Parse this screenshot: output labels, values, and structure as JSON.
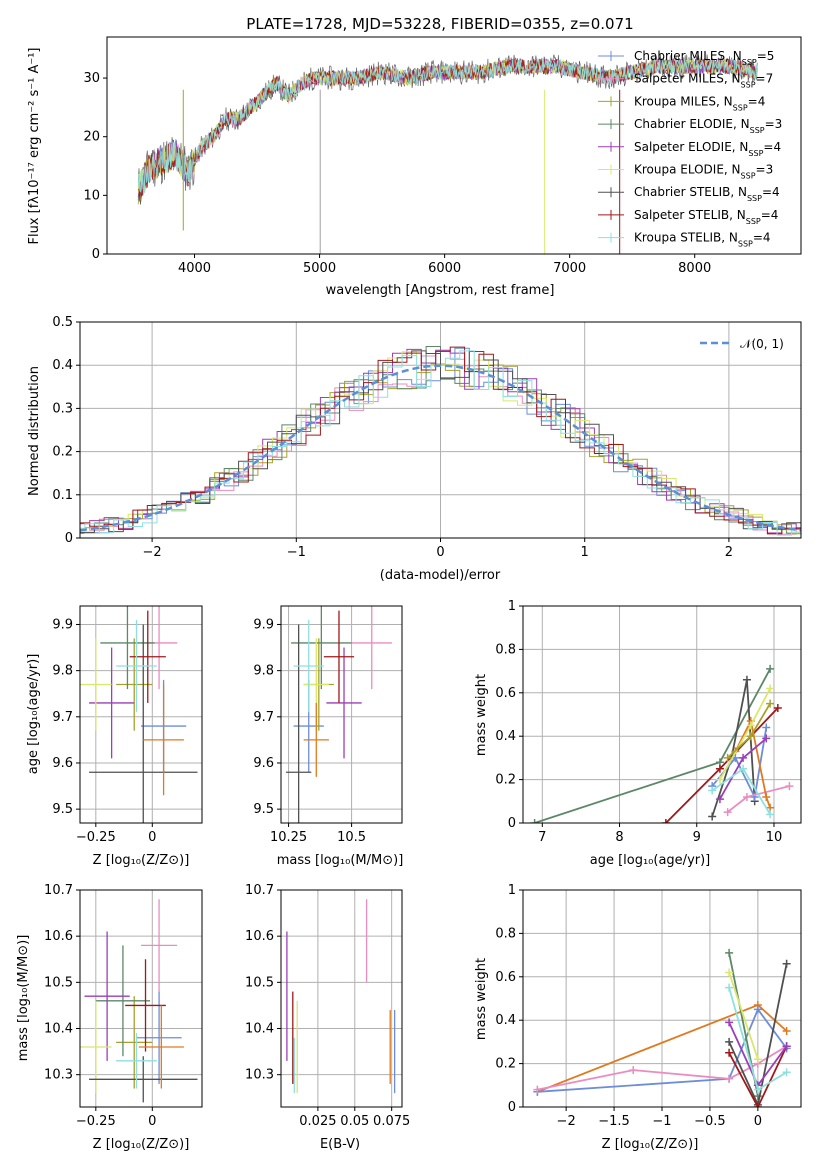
{
  "title": "PLATE=1728, MJD=53228, FIBERID=0355, z=0.071",
  "legend_spectrum": [
    {
      "name": "Chabrier MILES",
      "nssp": "5",
      "color": "#6c8ddc"
    },
    {
      "name": "Salpeter MILES",
      "nssp": "7",
      "color": "#ea8cc0"
    },
    {
      "name": "Kroupa MILES",
      "nssp": "4",
      "color": "#a8a02c"
    },
    {
      "name": "Chabrier ELODIE",
      "nssp": "3",
      "color": "#5c8868"
    },
    {
      "name": "Salpeter ELODIE",
      "nssp": "4",
      "color": "#9b3fb8"
    },
    {
      "name": "Kroupa ELODIE",
      "nssp": "3",
      "color": "#d8e86c"
    },
    {
      "name": "Chabrier STELIB",
      "nssp": "4",
      "color": "#505050"
    },
    {
      "name": "Salpeter STELIB",
      "nssp": "4",
      "color": "#a01818"
    },
    {
      "name": "Kroupa STELIB",
      "nssp": "4",
      "color": "#8ee0e0"
    }
  ],
  "labels": {
    "flux": "Flux [fλ10⁻¹⁷ erg cm⁻² s⁻¹ A⁻¹]",
    "wavelength": "wavelength [Angstrom, rest frame]",
    "normed": "Normed distribution",
    "residual": "(data-model)/error",
    "normal_legend": "𝒩(0, 1)",
    "age_axis": "age  [log₁₀(age/yr)]",
    "age_axis_x": "age  [log₁₀(age/yr)]",
    "Z_axis": "Z [log₁₀(Z/Z⊙)]",
    "mass_axis": "mass [log₁₀(M/M⊙)]",
    "ebv_axis": "E(B-V)",
    "mass_weight": "mass weight"
  },
  "chart_data": [
    {
      "type": "line",
      "title": "PLATE=1728, MJD=53228, FIBERID=0355, z=0.071",
      "xlabel": "wavelength [Angstrom, rest frame]",
      "ylabel": "Flux [fλ10⁻¹⁷ erg cm⁻² s⁻¹ A⁻¹]",
      "xlim": [
        3300,
        8850
      ],
      "ylim": [
        0,
        37
      ],
      "xticks": [
        4000,
        5000,
        6000,
        7000,
        8000
      ],
      "yticks": [
        0,
        10,
        20,
        30
      ],
      "x": [
        3550,
        3650,
        3750,
        3850,
        3950,
        4050,
        4150,
        4250,
        4350,
        4450,
        4550,
        4650,
        4750,
        4850,
        4950,
        5050,
        5150,
        5300,
        5500,
        5700,
        5900,
        6100,
        6300,
        6500,
        6700,
        6900,
        7100,
        7300,
        7500,
        7700,
        7900,
        8100,
        8300,
        8500
      ],
      "y": [
        11,
        15,
        16,
        17,
        14,
        18,
        20,
        23,
        23,
        25,
        27,
        29,
        27,
        29,
        30,
        30,
        30,
        30,
        31,
        30,
        31,
        31,
        31,
        32,
        32,
        32,
        31,
        30,
        31,
        32,
        32,
        32,
        32,
        31
      ],
      "grid": false
    },
    {
      "type": "histogram",
      "xlabel": "(data-model)/error",
      "ylabel": "Normed distribution",
      "xlim": [
        -2.5,
        2.5
      ],
      "ylim": [
        0,
        0.5
      ],
      "xticks": [
        -2,
        -1,
        0,
        1,
        2
      ],
      "yticks": [
        0.0,
        0.1,
        0.2,
        0.3,
        0.4,
        0.5
      ],
      "overlay": "N(0,1) gaussian, dashed",
      "legend": "top-right",
      "grid": true
    },
    {
      "type": "scatter",
      "xlabel": "Z [log₁₀(Z/Z⊙)]",
      "ylabel": "age  [log₁₀(age/yr)]",
      "xlim": [
        -0.32,
        0.22
      ],
      "ylim": [
        9.47,
        9.94
      ],
      "xticks": [
        -0.25,
        0.0
      ],
      "yticks": [
        9.5,
        9.6,
        9.7,
        9.8,
        9.9
      ],
      "points": [
        {
          "x": 0.05,
          "y": 9.68,
          "xerr": 0.1,
          "yerr": 0.1,
          "color": "#6c8ddc"
        },
        {
          "x": 0.03,
          "y": 9.86,
          "xerr": 0.08,
          "yerr": 0.1,
          "color": "#ea8cc0"
        },
        {
          "x": -0.08,
          "y": 9.77,
          "xerr": 0.08,
          "yerr": 0.1,
          "color": "#a8a02c"
        },
        {
          "x": -0.11,
          "y": 9.86,
          "xerr": 0.12,
          "yerr": 0.1,
          "color": "#5c8868"
        },
        {
          "x": -0.18,
          "y": 9.73,
          "xerr": 0.1,
          "yerr": 0.12,
          "color": "#9b3fb8"
        },
        {
          "x": -0.25,
          "y": 9.77,
          "xerr": 0.07,
          "yerr": 0.1,
          "color": "#d8e86c"
        },
        {
          "x": -0.04,
          "y": 9.58,
          "xerr": 0.24,
          "yerr": 0.32,
          "color": "#505050"
        },
        {
          "x": -0.02,
          "y": 9.83,
          "xerr": 0.08,
          "yerr": 0.1,
          "color": "#a01818"
        },
        {
          "x": -0.07,
          "y": 9.81,
          "xerr": 0.09,
          "yerr": 0.1,
          "color": "#8ee0e0"
        },
        {
          "x": 0.05,
          "y": 9.65,
          "xerr": 0.09,
          "yerr": 0.12,
          "color": "#e07a20"
        }
      ]
    },
    {
      "type": "scatter",
      "xlabel": "mass [log₁₀(M/M⊙)]",
      "ylabel": "",
      "xlim": [
        10.22,
        10.7
      ],
      "ylim": [
        9.47,
        9.94
      ],
      "xticks": [
        10.25,
        10.5
      ],
      "yticks": [
        9.5,
        9.6,
        9.7,
        9.8,
        9.9
      ],
      "points": [
        {
          "x": 10.33,
          "y": 9.68,
          "xerr": 0.06,
          "yerr": 0.1,
          "color": "#6c8ddc"
        },
        {
          "x": 10.58,
          "y": 9.86,
          "xerr": 0.08,
          "yerr": 0.1,
          "color": "#ea8cc0"
        },
        {
          "x": 10.37,
          "y": 9.77,
          "xerr": 0.06,
          "yerr": 0.1,
          "color": "#a8a02c"
        },
        {
          "x": 10.38,
          "y": 9.86,
          "xerr": 0.12,
          "yerr": 0.1,
          "color": "#5c8868"
        },
        {
          "x": 10.47,
          "y": 9.73,
          "xerr": 0.07,
          "yerr": 0.12,
          "color": "#9b3fb8"
        },
        {
          "x": 10.36,
          "y": 9.77,
          "xerr": 0.05,
          "yerr": 0.1,
          "color": "#d8e86c"
        },
        {
          "x": 10.29,
          "y": 9.58,
          "xerr": 0.05,
          "yerr": 0.32,
          "color": "#505050"
        },
        {
          "x": 10.45,
          "y": 9.83,
          "xerr": 0.06,
          "yerr": 0.1,
          "color": "#a01818"
        },
        {
          "x": 10.33,
          "y": 9.81,
          "xerr": 0.06,
          "yerr": 0.1,
          "color": "#8ee0e0"
        },
        {
          "x": 10.36,
          "y": 9.65,
          "xerr": 0.05,
          "yerr": 0.08,
          "color": "#e07a20"
        }
      ]
    },
    {
      "type": "line",
      "xlabel": "age  [log₁₀(age/yr)]",
      "ylabel": "mass weight",
      "xlim": [
        6.75,
        10.35
      ],
      "ylim": [
        0,
        1
      ],
      "xticks": [
        7,
        8,
        9,
        10
      ],
      "yticks": [
        0.0,
        0.2,
        0.4,
        0.6,
        0.8,
        1.0
      ],
      "series": [
        {
          "color": "#5c8868",
          "x": [
            6.9,
            9.3,
            9.95
          ],
          "y": [
            0.0,
            0.28,
            0.71
          ]
        },
        {
          "color": "#a01818",
          "x": [
            8.6,
            9.3,
            10.05
          ],
          "y": [
            0.0,
            0.25,
            0.53
          ]
        },
        {
          "color": "#505050",
          "x": [
            9.2,
            9.45,
            9.65,
            9.75
          ],
          "y": [
            0.03,
            0.3,
            0.66,
            0.1
          ]
        },
        {
          "color": "#6c8ddc",
          "x": [
            9.2,
            9.5,
            9.75,
            9.9
          ],
          "y": [
            0.17,
            0.3,
            0.12,
            0.44
          ]
        },
        {
          "color": "#ea8cc0",
          "x": [
            9.4,
            9.65,
            10.2
          ],
          "y": [
            0.05,
            0.12,
            0.17
          ]
        },
        {
          "color": "#e07a20",
          "x": [
            9.5,
            9.7,
            9.9,
            9.95
          ],
          "y": [
            0.33,
            0.47,
            0.12,
            0.07
          ]
        },
        {
          "color": "#9b3fb8",
          "x": [
            9.3,
            9.6,
            9.9
          ],
          "y": [
            0.11,
            0.3,
            0.39
          ]
        },
        {
          "color": "#d8e86c",
          "x": [
            9.3,
            9.7,
            9.95
          ],
          "y": [
            0.2,
            0.45,
            0.62
          ]
        },
        {
          "color": "#8ee0e0",
          "x": [
            9.2,
            9.6,
            9.95
          ],
          "y": [
            0.15,
            0.25,
            0.04
          ]
        },
        {
          "color": "#a8a02c",
          "x": [
            9.4,
            9.7,
            9.95
          ],
          "y": [
            0.3,
            0.4,
            0.55
          ]
        }
      ],
      "grid": true
    },
    {
      "type": "scatter",
      "xlabel": "Z [log₁₀(Z/Z⊙)]",
      "ylabel": "mass [log₁₀(M/M⊙)]",
      "xlim": [
        -0.32,
        0.22
      ],
      "ylim": [
        10.23,
        10.7
      ],
      "xticks": [
        -0.25,
        0.0
      ],
      "yticks": [
        10.3,
        10.4,
        10.5,
        10.6,
        10.7
      ],
      "points": [
        {
          "x": 0.03,
          "y": 10.38,
          "xerr": 0.1,
          "yerr": 0.1,
          "color": "#6c8ddc"
        },
        {
          "x": 0.03,
          "y": 10.58,
          "xerr": 0.08,
          "yerr": 0.1,
          "color": "#ea8cc0"
        },
        {
          "x": -0.08,
          "y": 10.37,
          "xerr": 0.08,
          "yerr": 0.1,
          "color": "#a8a02c"
        },
        {
          "x": -0.13,
          "y": 10.46,
          "xerr": 0.12,
          "yerr": 0.12,
          "color": "#5c8868"
        },
        {
          "x": -0.2,
          "y": 10.47,
          "xerr": 0.1,
          "yerr": 0.14,
          "color": "#9b3fb8"
        },
        {
          "x": -0.25,
          "y": 10.36,
          "xerr": 0.07,
          "yerr": 0.1,
          "color": "#d8e86c"
        },
        {
          "x": -0.04,
          "y": 10.29,
          "xerr": 0.24,
          "yerr": 0.05,
          "color": "#505050"
        },
        {
          "x": -0.03,
          "y": 10.45,
          "xerr": 0.09,
          "yerr": 0.1,
          "color": "#a01818"
        },
        {
          "x": -0.07,
          "y": 10.33,
          "xerr": 0.09,
          "yerr": 0.06,
          "color": "#8ee0e0"
        },
        {
          "x": 0.04,
          "y": 10.36,
          "xerr": 0.1,
          "yerr": 0.09,
          "color": "#e07a20"
        }
      ]
    },
    {
      "type": "scatter",
      "xlabel": "E(B-V)",
      "ylabel": "",
      "xlim": [
        0.0,
        0.082
      ],
      "ylim": [
        10.23,
        10.7
      ],
      "xticks": [
        0.025,
        0.05,
        0.075
      ],
      "yticks": [
        10.3,
        10.4,
        10.5,
        10.6,
        10.7
      ],
      "points": [
        {
          "x": 0.077,
          "y": 10.35,
          "yerr": 0.09,
          "color": "#6c8ddc"
        },
        {
          "x": 0.058,
          "y": 10.59,
          "yerr": 0.09,
          "color": "#ea8cc0"
        },
        {
          "x": 0.004,
          "y": 10.47,
          "yerr": 0.14,
          "color": "#9b3fb8"
        },
        {
          "x": 0.011,
          "y": 10.36,
          "yerr": 0.1,
          "color": "#d8e86c"
        },
        {
          "x": 0.008,
          "y": 10.38,
          "yerr": 0.1,
          "color": "#a01818"
        },
        {
          "x": 0.009,
          "y": 10.32,
          "yerr": 0.06,
          "color": "#8ee0e0"
        },
        {
          "x": 0.074,
          "y": 10.36,
          "yerr": 0.08,
          "color": "#e07a20"
        }
      ]
    },
    {
      "type": "line",
      "xlabel": "Z [log₁₀(Z/Z⊙)]",
      "ylabel": "mass weight",
      "xlim": [
        -2.45,
        0.45
      ],
      "ylim": [
        0,
        1
      ],
      "xticks": [
        -2.0,
        -1.5,
        -1.0,
        -0.5,
        0.0
      ],
      "yticks": [
        0.0,
        0.2,
        0.4,
        0.6,
        0.8,
        1.0
      ],
      "series": [
        {
          "color": "#e07a20",
          "x": [
            -2.3,
            0.0,
            0.3
          ],
          "y": [
            0.07,
            0.47,
            0.35
          ]
        },
        {
          "color": "#6c8ddc",
          "x": [
            -2.3,
            -0.3,
            0.0,
            0.3
          ],
          "y": [
            0.07,
            0.13,
            0.45,
            0.27
          ]
        },
        {
          "color": "#ea8cc0",
          "x": [
            -2.3,
            -1.3,
            -0.3,
            0.0,
            0.3
          ],
          "y": [
            0.08,
            0.17,
            0.13,
            0.2,
            0.28
          ]
        },
        {
          "color": "#5c8868",
          "x": [
            -0.3,
            0.0
          ],
          "y": [
            0.71,
            0.05
          ]
        },
        {
          "color": "#505050",
          "x": [
            -0.3,
            0.0,
            0.3
          ],
          "y": [
            0.3,
            0.01,
            0.66
          ]
        },
        {
          "color": "#a01818",
          "x": [
            -0.3,
            0.0,
            0.3
          ],
          "y": [
            0.25,
            0.0,
            0.28
          ]
        },
        {
          "color": "#9b3fb8",
          "x": [
            -0.3,
            0.0,
            0.3
          ],
          "y": [
            0.39,
            0.1,
            0.28
          ]
        },
        {
          "color": "#d8e86c",
          "x": [
            -0.3,
            0.0
          ],
          "y": [
            0.62,
            0.22
          ]
        },
        {
          "color": "#8ee0e0",
          "x": [
            -0.3,
            0.0,
            0.3
          ],
          "y": [
            0.55,
            0.08,
            0.16
          ]
        }
      ],
      "grid": true
    }
  ]
}
